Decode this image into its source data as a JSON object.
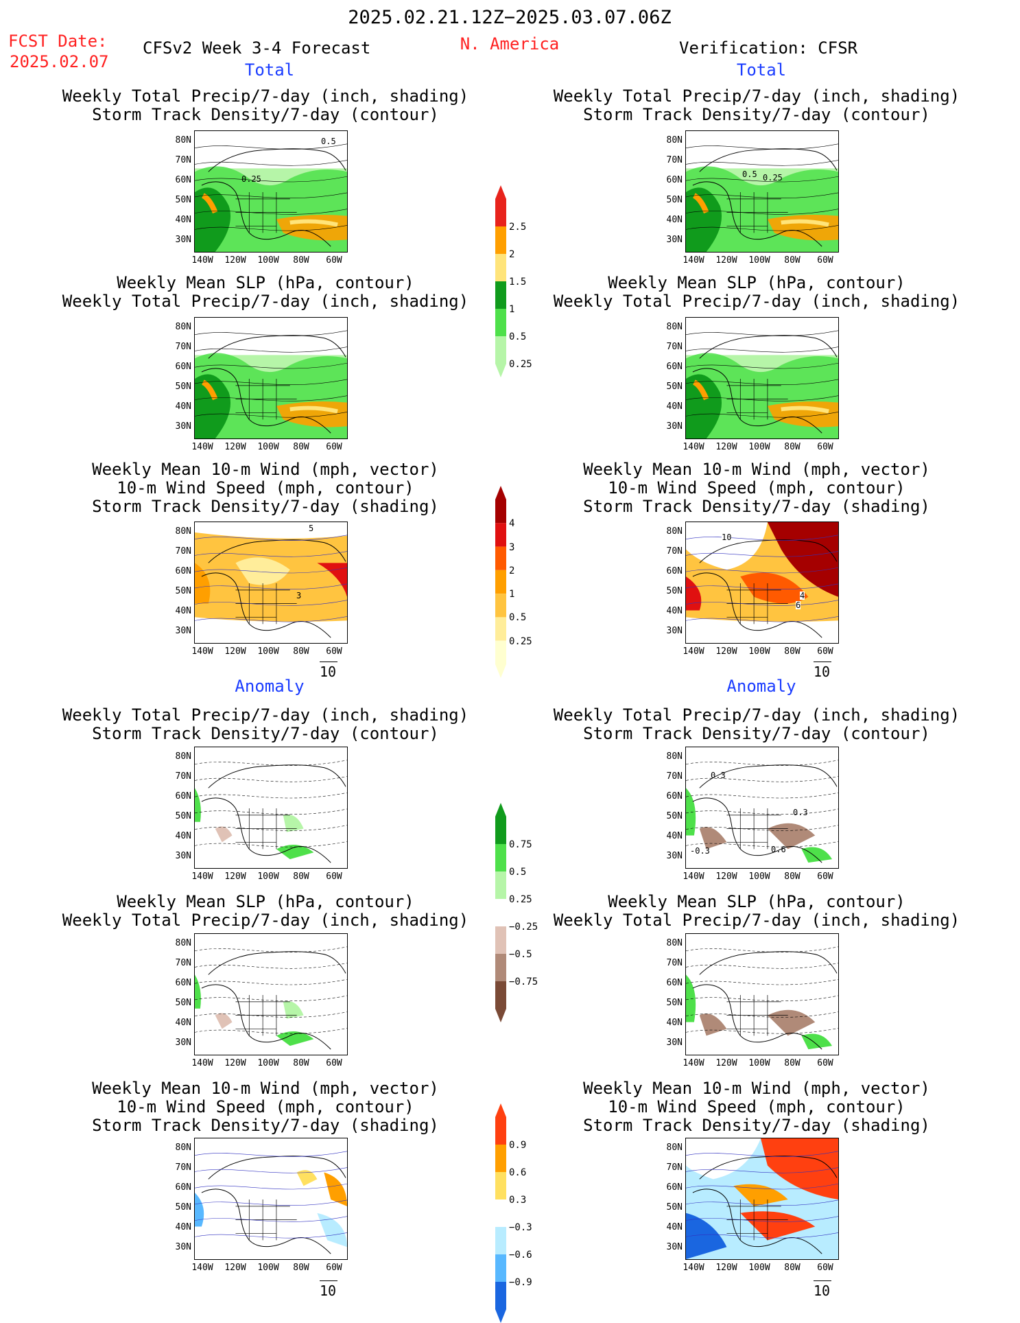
{
  "header": {
    "date_range": "2025.02.21.12Z−2025.03.07.06Z",
    "fcst_label": "FCST Date:",
    "fcst_date": "2025.02.07",
    "forecast_title": "CFSv2 Week 3-4 Forecast",
    "region": "N. America",
    "verification": "Verification: CFSR"
  },
  "sections": {
    "total": "Total",
    "anomaly": "Anomaly"
  },
  "titles": {
    "precip_storm": [
      "Weekly Total Precip/7-day (inch, shading)",
      "Storm Track Density/7-day (contour)"
    ],
    "slp_precip": [
      "Weekly Mean SLP (hPa, contour)",
      "Weekly Total Precip/7-day (inch, shading)"
    ],
    "wind_storm": [
      "Weekly Mean 10-m Wind (mph, vector)",
      "10-m Wind Speed (mph, contour)",
      "Storm Track Density/7-day (shading)"
    ]
  },
  "axes": {
    "lat": [
      "80N",
      "70N",
      "60N",
      "50N",
      "40N",
      "30N"
    ],
    "lon": [
      "140W",
      "120W",
      "100W",
      "80W",
      "60W"
    ]
  },
  "vector_ref": "10",
  "colorbars": {
    "precip_total": {
      "labels": [
        "2.5",
        "2",
        "1.5",
        "1",
        "0.5",
        "0.25"
      ],
      "colors": [
        "#e8231c",
        "#ff9f00",
        "#ffe47a",
        "#109b1c",
        "#4ee04a",
        "#b6f5a8"
      ]
    },
    "storm_total": {
      "labels": [
        "4",
        "3",
        "2",
        "1",
        "0.5",
        "0.25"
      ],
      "colors": [
        "#a50000",
        "#e01010",
        "#ff5a00",
        "#ff9f00",
        "#ffc440",
        "#ffed9a",
        "#ffffd0"
      ]
    },
    "precip_anom": {
      "labels": [
        "0.75",
        "0.5",
        "0.25",
        "−0.25",
        "−0.5",
        "−0.75"
      ],
      "colors": [
        "#109b1c",
        "#4ee04a",
        "#b6f5a8",
        "#ffffff",
        "#e0c2b6",
        "#b08a78",
        "#7a4a36"
      ]
    },
    "storm_anom": {
      "labels": [
        "0.9",
        "0.6",
        "0.3",
        "−0.3",
        "−0.6",
        "−0.9"
      ],
      "colors": [
        "#ff4010",
        "#ff9f00",
        "#ffe060",
        "#ffffff",
        "#b8ecff",
        "#58b8ff",
        "#1a66e0"
      ]
    }
  },
  "contour_labels": {
    "fcst_total_precip_storm": [
      "0.5",
      "0.25"
    ],
    "verif_total_precip_storm": [
      "0.5",
      "0.25"
    ],
    "fcst_total_wind": [
      "5",
      "3"
    ],
    "verif_total_wind": [
      "10",
      "4",
      "6"
    ],
    "verif_anom_precip_storm": [
      "0.3",
      "0.3",
      "-0.3",
      "0.6"
    ]
  }
}
